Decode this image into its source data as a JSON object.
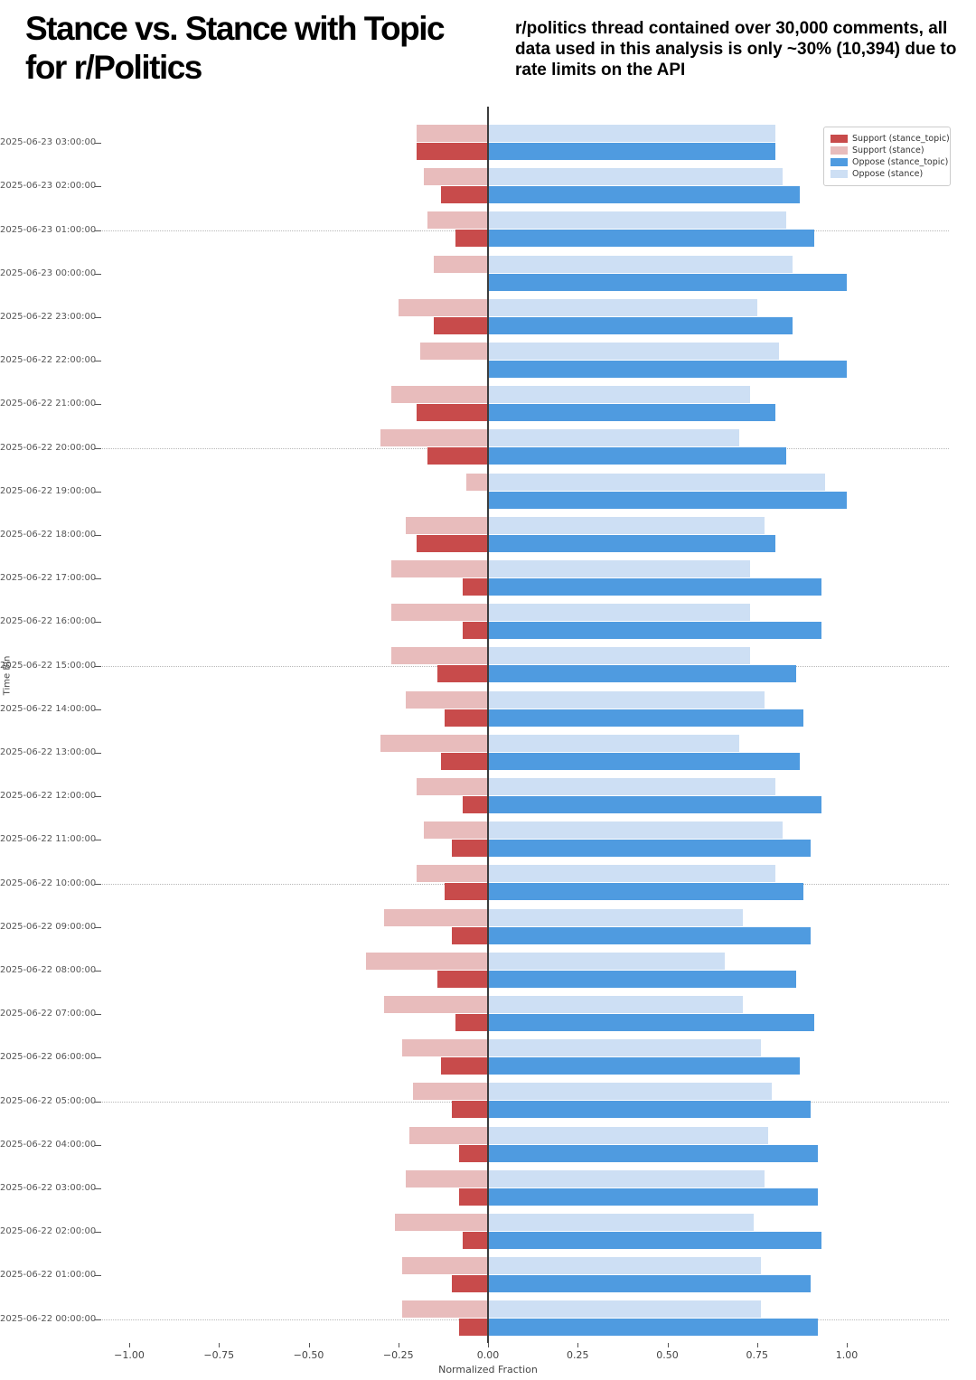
{
  "title": {
    "line1": "Stance vs. Stance with Topic",
    "line2": "for r/Politics"
  },
  "annotation": "r/politics thread contained over 30,000 comments, all data used in this analysis is only ~30% (10,394) due to rate limits on the API",
  "chart_data": {
    "type": "bar",
    "orientation": "horizontal-diverging",
    "title": "Stance vs. Stance with Topic for r/Politics",
    "xlabel": "Normalized Fraction",
    "ylabel": "Time Bin",
    "xlim": [
      -1.0,
      1.0
    ],
    "xtick_values": [
      -1.0,
      -0.75,
      -0.5,
      -0.25,
      0.0,
      0.25,
      0.5,
      0.75,
      1.0
    ],
    "xtick_labels": [
      "−1.00",
      "−0.75",
      "−0.50",
      "−0.25",
      "0.00",
      "0.25",
      "0.50",
      "0.75",
      "1.00"
    ],
    "grid": "dotted horizontal major gridlines",
    "legend_position": "upper right",
    "major_grid_rows": [
      2,
      7,
      12,
      17,
      22,
      27
    ],
    "categories": [
      "2025-06-23 03:00:00",
      "2025-06-23 02:00:00",
      "2025-06-23 01:00:00",
      "2025-06-23 00:00:00",
      "2025-06-22 23:00:00",
      "2025-06-22 22:00:00",
      "2025-06-22 21:00:00",
      "2025-06-22 20:00:00",
      "2025-06-22 19:00:00",
      "2025-06-22 18:00:00",
      "2025-06-22 17:00:00",
      "2025-06-22 16:00:00",
      "2025-06-22 15:00:00",
      "2025-06-22 14:00:00",
      "2025-06-22 13:00:00",
      "2025-06-22 12:00:00",
      "2025-06-22 11:00:00",
      "2025-06-22 10:00:00",
      "2025-06-22 09:00:00",
      "2025-06-22 08:00:00",
      "2025-06-22 07:00:00",
      "2025-06-22 06:00:00",
      "2025-06-22 05:00:00",
      "2025-06-22 04:00:00",
      "2025-06-22 03:00:00",
      "2025-06-22 02:00:00",
      "2025-06-22 01:00:00",
      "2025-06-22 00:00:00"
    ],
    "series": [
      {
        "name": "Support (stance_topic)",
        "color": "#c84b4b",
        "values": [
          -0.2,
          -0.13,
          -0.09,
          0.0,
          -0.15,
          0.0,
          -0.2,
          -0.17,
          0.0,
          -0.2,
          -0.07,
          -0.07,
          -0.14,
          -0.12,
          -0.13,
          -0.07,
          -0.1,
          -0.12,
          -0.1,
          -0.14,
          -0.09,
          -0.13,
          -0.1,
          -0.08,
          -0.08,
          -0.07,
          -0.1,
          -0.08
        ]
      },
      {
        "name": "Support (stance)",
        "color": "#e8bcbc",
        "values": [
          -0.2,
          -0.18,
          -0.17,
          -0.15,
          -0.25,
          -0.19,
          -0.27,
          -0.3,
          -0.06,
          -0.23,
          -0.27,
          -0.27,
          -0.27,
          -0.23,
          -0.3,
          -0.2,
          -0.18,
          -0.2,
          -0.29,
          -0.34,
          -0.29,
          -0.24,
          -0.21,
          -0.22,
          -0.23,
          -0.26,
          -0.24,
          -0.24
        ]
      },
      {
        "name": "Oppose (stance_topic)",
        "color": "#4f9be0",
        "values": [
          0.8,
          0.87,
          0.91,
          1.0,
          0.85,
          1.0,
          0.8,
          0.83,
          1.0,
          0.8,
          0.93,
          0.93,
          0.86,
          0.88,
          0.87,
          0.93,
          0.9,
          0.88,
          0.9,
          0.86,
          0.91,
          0.87,
          0.9,
          0.92,
          0.92,
          0.93,
          0.9,
          0.92
        ]
      },
      {
        "name": "Oppose (stance)",
        "color": "#cddff4",
        "values": [
          0.8,
          0.82,
          0.83,
          0.85,
          0.75,
          0.81,
          0.73,
          0.7,
          0.94,
          0.77,
          0.73,
          0.73,
          0.73,
          0.77,
          0.7,
          0.8,
          0.82,
          0.8,
          0.71,
          0.66,
          0.71,
          0.76,
          0.79,
          0.78,
          0.77,
          0.74,
          0.76,
          0.76
        ]
      }
    ]
  }
}
